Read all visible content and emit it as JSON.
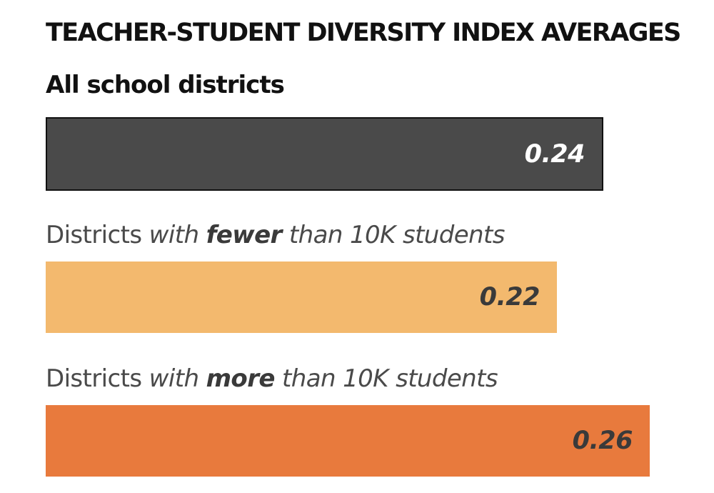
{
  "chart_data": {
    "type": "bar",
    "orientation": "horizontal",
    "title": "TEACHER-STUDENT DIVERSITY INDEX AVERAGES",
    "categories": [
      {
        "label": "All school districts",
        "parts": [
          {
            "text": "All school districts",
            "style": "plain"
          }
        ],
        "value": 0.24,
        "value_label": "0.24",
        "color": "#4a4a4a",
        "value_color": "#ffffff"
      },
      {
        "label": "Districts with fewer than 10K students",
        "parts": [
          {
            "text": "Districts ",
            "style": "plain"
          },
          {
            "text": "with ",
            "style": "italic"
          },
          {
            "text": "fewer",
            "style": "bold-italic"
          },
          {
            "text": " than 10K students",
            "style": "italic"
          }
        ],
        "value": 0.22,
        "value_label": "0.22",
        "color": "#f3b96e",
        "value_color": "#3a3a3a"
      },
      {
        "label": "Districts with more than 10K students",
        "parts": [
          {
            "text": "Districts ",
            "style": "plain"
          },
          {
            "text": "with ",
            "style": "italic"
          },
          {
            "text": "more",
            "style": "bold-italic"
          },
          {
            "text": " than 10K students",
            "style": "italic"
          }
        ],
        "value": 0.26,
        "value_label": "0.26",
        "color": "#e87a3d",
        "value_color": "#3a3a3a"
      }
    ],
    "xlim": [
      0,
      0.26
    ]
  }
}
